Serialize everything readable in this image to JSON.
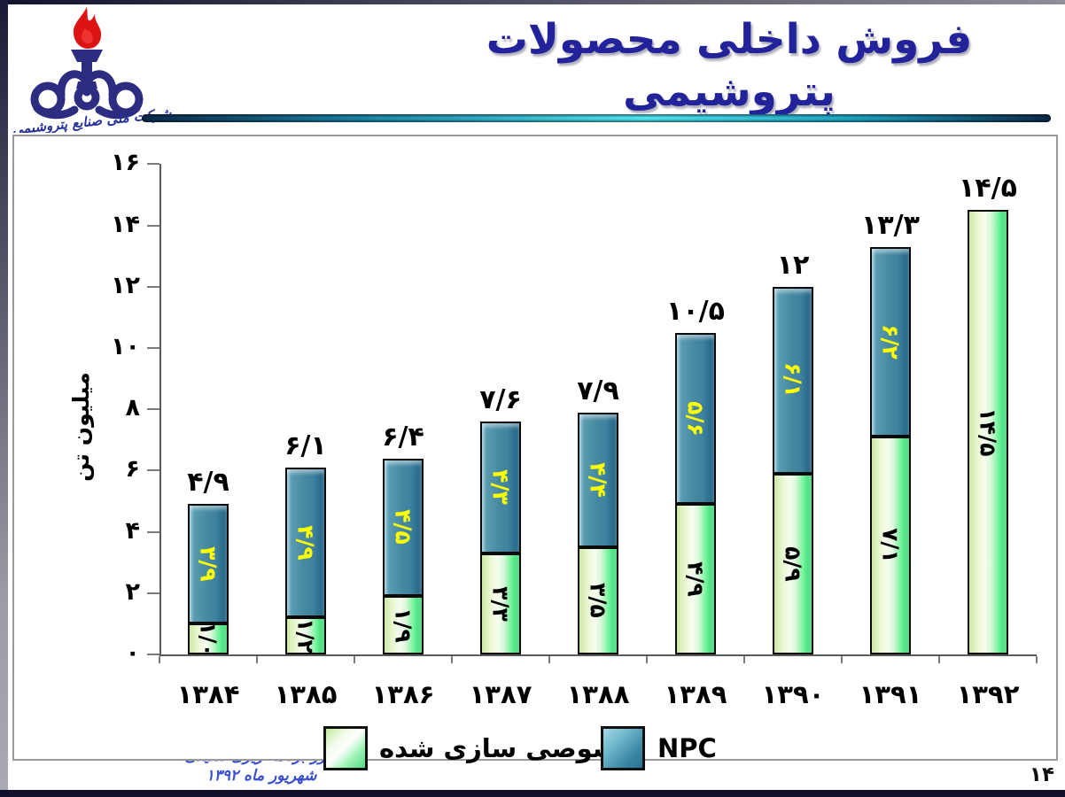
{
  "slide": {
    "title": "فروش داخلی محصولات پتروشیمی",
    "logo_caption": "شرکت ملی صنایع پتروشیمی",
    "footer_line1": "امور برنامه ریزی تلفیقی",
    "footer_line2": "شهریور ماه ۱۳۹۲",
    "page_number": "۱۴"
  },
  "colors": {
    "title_navy": "#22229a",
    "npc_bar_teal": "#47899f",
    "privatized_bar_green": "#7df5a0",
    "npc_value_label": "#ffff00",
    "privatized_value_label": "#000000",
    "footer_blue": "#3a4fd0"
  },
  "chart_data": {
    "type": "bar",
    "stacked": true,
    "title": "فروش داخلی محصولات پتروشیمی",
    "ylabel": "میلیون تن",
    "ylim": [
      0,
      16
    ],
    "ytick_step": 2,
    "ytick_labels": [
      "۰",
      "۲",
      "۴",
      "۶",
      "۸",
      "۱۰",
      "۱۲",
      "۱۴",
      "۱۶"
    ],
    "grid": false,
    "legend_position": "bottom",
    "categories": [
      "۱۳۸۴",
      "۱۳۸۵",
      "۱۳۸۶",
      "۱۳۸۷",
      "۱۳۸۸",
      "۱۳۸۹",
      "۱۳۹۰",
      "۱۳۹۱",
      "۱۳۹۲"
    ],
    "categories_western": [
      1384,
      1385,
      1386,
      1387,
      1388,
      1389,
      1390,
      1391,
      1392
    ],
    "series": [
      {
        "name": "خصوصی سازی شده",
        "values": [
          1.0,
          1.2,
          1.9,
          3.3,
          3.5,
          4.9,
          5.9,
          7.1,
          14.5
        ],
        "value_labels": [
          "۱/۰",
          "۱/۲",
          "۱/۹",
          "۳/۳",
          "۳/۵",
          "۴/۹",
          "۵/۹",
          "۷/۱",
          "۱۴/۵"
        ],
        "label_color": "#000000"
      },
      {
        "name": "NPC",
        "values": [
          3.9,
          4.9,
          4.5,
          4.3,
          4.4,
          5.6,
          6.1,
          6.2,
          0
        ],
        "value_labels": [
          "۳/۹",
          "۴/۹",
          "۴/۵",
          "۴/۳",
          "۴/۴",
          "۵/۶",
          "۶/۱",
          "۶/۲",
          ""
        ],
        "label_color": "#ffff00"
      }
    ],
    "totals": [
      4.9,
      6.1,
      6.4,
      7.6,
      7.9,
      10.5,
      12,
      13.3,
      14.5
    ],
    "total_labels": [
      "۴/۹",
      "۶/۱",
      "۶/۴",
      "۷/۶",
      "۷/۹",
      "۱۰/۵",
      "۱۲",
      "۱۳/۳",
      "۱۴/۵"
    ]
  }
}
